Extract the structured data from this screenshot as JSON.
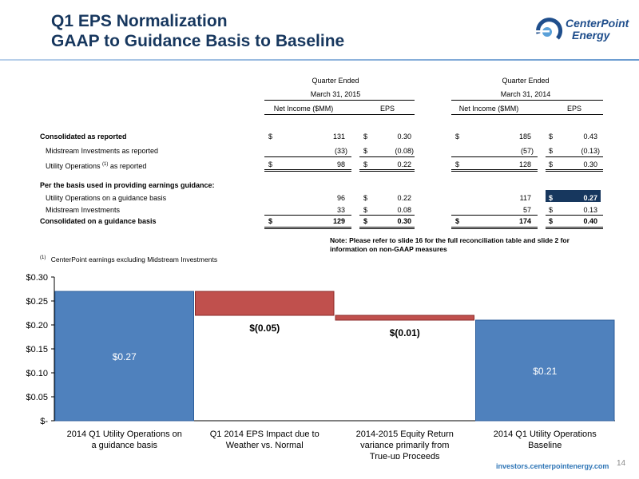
{
  "title_line1": "Q1 EPS Normalization",
  "title_line2": "GAAP to Guidance Basis to Baseline",
  "logo": {
    "line1": "CenterPoint",
    "line2": "Energy",
    "icon": "centerpoint-logo-icon",
    "color": "#1f4e8c"
  },
  "table": {
    "q2015_header": "Quarter Ended",
    "q2015_date": "March 31, 2015",
    "q2014_header": "Quarter Ended",
    "q2014_date": "March 31, 2014",
    "col_net_income": "Net Income ($MM)",
    "col_eps": "EPS",
    "col_net_income_b": "Net Income ($MM)",
    "col_eps_b": "EPS",
    "currency": "$",
    "rows": [
      {
        "label": "Consolidated as reported",
        "ni15": "131",
        "eps15": "0.30",
        "ni14": "185",
        "eps14": "0.43"
      },
      {
        "label": "Midstream Investments as reported",
        "ni15": "(33)",
        "eps15": "(0.08)",
        "ni14": "(57)",
        "eps14": "(0.13)"
      },
      {
        "label": "Utility Operations",
        "label_sup": "(1)",
        "label_suffix": "as reported",
        "ni15": "98",
        "eps15": "0.22",
        "ni14": "128",
        "eps14": "0.30"
      },
      {
        "label": "Per the basis used in providing earnings guidance:"
      },
      {
        "label": "Utility Operations on a guidance basis",
        "ni15": "96",
        "eps15": "0.22",
        "ni14": "117",
        "eps14": "0.27"
      },
      {
        "label": "Midstream Investments",
        "ni15": "33",
        "eps15": "0.08",
        "ni14": "57",
        "eps14": "0.13"
      },
      {
        "label": "Consolidated on a guidance basis",
        "ni15": "129",
        "eps15": "0.30",
        "ni14": "174",
        "eps14": "0.40"
      }
    ]
  },
  "note": "Note:  Please refer to slide 16 for the full reconciliation table and slide 2 for information on non-GAAP measures",
  "footnote_marker": "(1)",
  "footnote": "CenterPoint earnings excluding Midstream Investments",
  "chart_data": {
    "type": "bar",
    "subtype": "waterfall",
    "categories": [
      "2014 Q1 Utility Operations on a guidance basis",
      "Q1 2014 EPS Impact due to Weather vs. Normal",
      "2014-2015 Equity Return variance primarily from True-up Proceeds",
      "2014 Q1 Utility Operations Baseline"
    ],
    "values": [
      0.27,
      -0.05,
      -0.01,
      0.21
    ],
    "data_labels": [
      "$0.27",
      "$(0.05)",
      "$(0.01)",
      "$0.21"
    ],
    "bar_kinds": [
      "total",
      "delta",
      "delta",
      "total"
    ],
    "y_ticks": [
      "$-",
      "$0.05",
      "$0.10",
      "$0.15",
      "$0.20",
      "$0.25",
      "$0.30"
    ],
    "ylim": [
      0,
      0.3
    ],
    "grid": false,
    "colors": {
      "total": "#4f81bd",
      "total_edge": "#2c5e9c",
      "delta": "#c0504d",
      "delta_edge": "#8b2a28"
    }
  },
  "footer_url": "investors.centerpointenergy.com",
  "page_number": "14",
  "colors": {
    "title": "#17375e",
    "highlight": "#17375e",
    "url": "#2e75b6"
  }
}
